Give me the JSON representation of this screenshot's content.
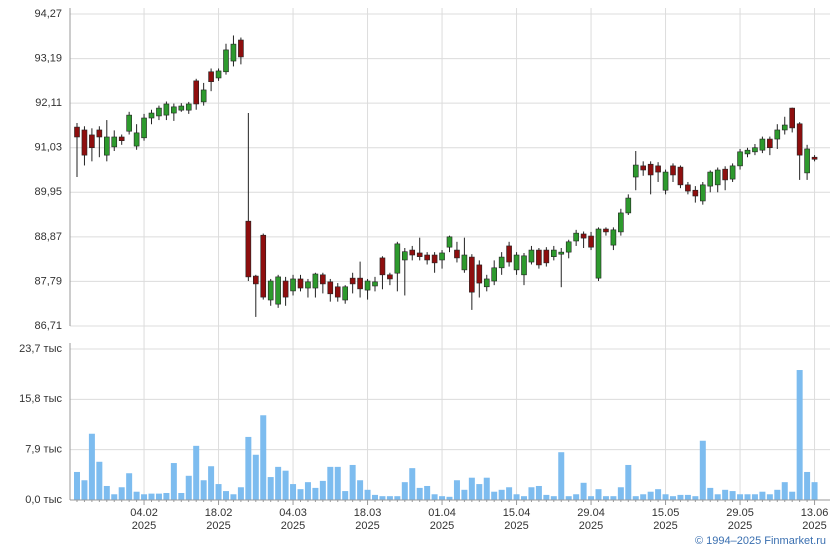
{
  "chart_data": [
    {
      "type": "candlestick",
      "open": [
        91.53,
        91.46,
        91.34,
        91.46,
        90.85,
        91.05,
        91.29,
        91.43,
        91.07,
        91.27,
        91.75,
        91.8,
        91.82,
        91.87,
        91.94,
        91.94,
        92.65,
        92.14,
        92.87,
        92.72,
        92.87,
        93.13,
        93.64,
        89.25,
        87.92,
        88.91,
        87.34,
        87.24,
        87.8,
        87.56,
        87.85,
        87.63,
        87.63,
        87.95,
        87.78,
        87.66,
        87.34,
        87.87,
        87.87,
        87.58,
        87.68,
        88.36,
        87.95,
        87.99,
        88.31,
        88.55,
        88.48,
        88.43,
        88.43,
        88.31,
        88.62,
        88.55,
        88.07,
        88.38,
        88.19,
        87.66,
        87.8,
        88.12,
        88.65,
        88.07,
        87.95,
        88.26,
        88.55,
        88.55,
        88.39,
        88.45,
        88.5,
        88.77,
        88.94,
        88.89,
        87.87,
        89.06,
        88.67,
        88.99,
        89.45,
        90.32,
        90.59,
        90.63,
        90.59,
        90.0,
        90.59,
        90.56,
        90.13,
        90.0,
        89.74,
        90.1,
        90.13,
        90.51,
        90.27,
        90.59,
        90.88,
        90.93,
        90.97,
        91.24,
        91.24,
        91.46,
        91.99,
        91.61,
        90.42,
        90.8
      ],
      "high": [
        91.63,
        91.55,
        91.5,
        91.55,
        91.7,
        91.45,
        91.35,
        91.9,
        91.6,
        91.85,
        91.95,
        92.05,
        92.15,
        92.1,
        92.11,
        92.14,
        92.7,
        92.6,
        92.95,
        92.95,
        93.55,
        93.75,
        93.7,
        91.87,
        87.95,
        88.95,
        87.85,
        87.95,
        87.9,
        87.95,
        87.95,
        87.85,
        88.0,
        88.0,
        87.85,
        87.75,
        87.7,
        88.0,
        88.27,
        87.85,
        87.9,
        88.4,
        88.0,
        88.75,
        88.6,
        88.65,
        88.85,
        88.5,
        88.5,
        88.55,
        88.9,
        88.75,
        88.85,
        88.45,
        88.3,
        87.95,
        88.3,
        88.5,
        88.75,
        88.5,
        88.48,
        88.65,
        88.6,
        88.62,
        88.65,
        88.6,
        88.8,
        89.04,
        89.0,
        88.99,
        89.1,
        89.1,
        89.1,
        89.55,
        89.9,
        90.95,
        90.7,
        90.7,
        90.68,
        90.5,
        90.65,
        90.6,
        90.2,
        90.1,
        90.2,
        90.48,
        90.55,
        90.58,
        90.65,
        91.0,
        91.03,
        91.12,
        91.3,
        91.3,
        91.6,
        91.78,
        92.0,
        91.65,
        91.1,
        90.85
      ],
      "low": [
        90.32,
        90.6,
        90.7,
        90.8,
        90.7,
        90.95,
        91.1,
        91.35,
        90.98,
        91.2,
        91.6,
        91.7,
        91.7,
        91.68,
        91.9,
        91.85,
        91.95,
        92.05,
        92.4,
        92.65,
        92.8,
        93.0,
        93.05,
        87.8,
        86.93,
        87.35,
        87.2,
        87.15,
        87.2,
        87.45,
        87.55,
        87.4,
        87.4,
        87.5,
        87.3,
        87.3,
        87.25,
        87.5,
        87.4,
        87.35,
        87.55,
        87.6,
        87.7,
        87.55,
        87.45,
        88.3,
        88.3,
        88.2,
        88.0,
        88.1,
        88.5,
        88.25,
        88.0,
        87.1,
        87.4,
        87.55,
        87.7,
        87.95,
        88.15,
        87.95,
        87.7,
        88.2,
        88.1,
        88.15,
        88.3,
        87.65,
        88.35,
        88.65,
        88.6,
        88.55,
        87.8,
        88.9,
        88.55,
        88.9,
        89.4,
        90.0,
        90.35,
        89.9,
        90.2,
        89.9,
        90.2,
        90.05,
        89.9,
        89.7,
        89.65,
        89.95,
        89.95,
        90.0,
        90.2,
        90.5,
        90.8,
        90.85,
        90.9,
        90.85,
        91.0,
        91.35,
        91.4,
        90.25,
        90.25,
        90.7
      ],
      "close": [
        91.29,
        90.85,
        91.03,
        91.29,
        91.29,
        91.29,
        91.2,
        91.82,
        91.39,
        91.75,
        91.87,
        91.99,
        92.09,
        92.02,
        92.04,
        92.09,
        92.09,
        92.43,
        92.63,
        92.89,
        93.4,
        93.54,
        93.23,
        87.9,
        87.73,
        87.41,
        87.8,
        87.9,
        87.41,
        87.85,
        87.63,
        87.78,
        87.97,
        87.73,
        87.49,
        87.41,
        87.66,
        87.73,
        87.61,
        87.8,
        87.78,
        87.95,
        87.85,
        88.7,
        88.51,
        88.43,
        88.39,
        88.31,
        88.24,
        88.48,
        88.87,
        88.36,
        88.43,
        87.53,
        87.75,
        87.85,
        88.12,
        88.38,
        88.26,
        88.43,
        88.41,
        88.55,
        88.19,
        88.24,
        88.55,
        88.5,
        88.75,
        88.96,
        88.84,
        88.62,
        89.06,
        88.99,
        89.04,
        89.45,
        89.81,
        90.61,
        90.49,
        90.37,
        90.44,
        90.44,
        90.37,
        90.13,
        89.98,
        89.86,
        90.13,
        90.44,
        90.49,
        90.25,
        90.59,
        90.93,
        90.97,
        91.03,
        91.24,
        91.03,
        91.46,
        91.58,
        91.51,
        90.85,
        91.0,
        90.75
      ],
      "up_color": "#2d9a2d",
      "down_color": "#8e0e0e",
      "ylim": [
        86.71,
        94.27
      ],
      "yticks": [
        {
          "value": 86.71,
          "label": "86,71"
        },
        {
          "value": 87.79,
          "label": "87,79"
        },
        {
          "value": 88.87,
          "label": "88,87"
        },
        {
          "value": 89.95,
          "label": "89,95"
        },
        {
          "value": 91.03,
          "label": "91,03"
        },
        {
          "value": 92.11,
          "label": "92,11"
        },
        {
          "value": 93.19,
          "label": "93,19"
        },
        {
          "value": 94.27,
          "label": "94,27"
        }
      ],
      "grid": true
    },
    {
      "type": "bar",
      "categories": [
        null,
        null,
        null,
        null,
        null,
        null,
        null,
        null,
        null,
        "04.02",
        null,
        null,
        null,
        null,
        null,
        null,
        null,
        null,
        null,
        "18.02",
        null,
        null,
        null,
        null,
        null,
        null,
        null,
        null,
        null,
        "04.03",
        null,
        null,
        null,
        null,
        null,
        null,
        null,
        null,
        null,
        "18.03",
        null,
        null,
        null,
        null,
        null,
        null,
        null,
        null,
        null,
        "01.04",
        null,
        null,
        null,
        null,
        null,
        null,
        null,
        null,
        null,
        "15.04",
        null,
        null,
        null,
        null,
        null,
        null,
        null,
        null,
        null,
        "29.04",
        null,
        null,
        null,
        null,
        null,
        null,
        null,
        null,
        null,
        "15.05",
        null,
        null,
        null,
        null,
        null,
        null,
        null,
        null,
        null,
        "29.05",
        null,
        null,
        null,
        null,
        null,
        null,
        null,
        null,
        null,
        "13.06"
      ],
      "x_year": "2025",
      "values": [
        4.4,
        3.1,
        10.4,
        6.0,
        2.2,
        0.9,
        2.0,
        4.2,
        1.3,
        0.9,
        1.0,
        1.0,
        1.1,
        5.8,
        1.1,
        3.8,
        8.5,
        3.1,
        5.3,
        2.5,
        1.4,
        0.9,
        2.0,
        9.9,
        7.1,
        13.3,
        3.6,
        5.2,
        4.6,
        2.5,
        1.7,
        2.8,
        1.9,
        3.0,
        5.2,
        5.2,
        1.4,
        5.5,
        3.1,
        1.6,
        0.8,
        0.6,
        0.6,
        0.6,
        2.8,
        5.0,
        1.9,
        2.2,
        0.9,
        0.6,
        0.5,
        3.1,
        1.6,
        3.5,
        2.5,
        3.5,
        1.3,
        1.6,
        2.0,
        0.9,
        0.6,
        2.0,
        2.2,
        0.8,
        0.6,
        7.5,
        0.6,
        0.9,
        2.7,
        0.6,
        1.7,
        0.6,
        0.6,
        2.0,
        5.5,
        0.6,
        0.9,
        1.3,
        1.7,
        0.9,
        0.6,
        0.8,
        0.8,
        0.6,
        9.3,
        1.9,
        0.9,
        1.6,
        1.4,
        0.9,
        0.9,
        0.9,
        1.3,
        0.9,
        1.6,
        2.8,
        1.3,
        20.4,
        4.4,
        2.8
      ],
      "color": "#7dbcef",
      "ylim": [
        0,
        23.7
      ],
      "yticks": [
        {
          "value": 0,
          "label": "0,0 тыс"
        },
        {
          "value": 7.9,
          "label": "7,9 тыс"
        },
        {
          "value": 15.8,
          "label": "15,8 тыс"
        },
        {
          "value": 23.7,
          "label": "23,7 тыс"
        }
      ],
      "grid": true
    }
  ],
  "footer": "© 1994–2025 Finmarket.ru"
}
